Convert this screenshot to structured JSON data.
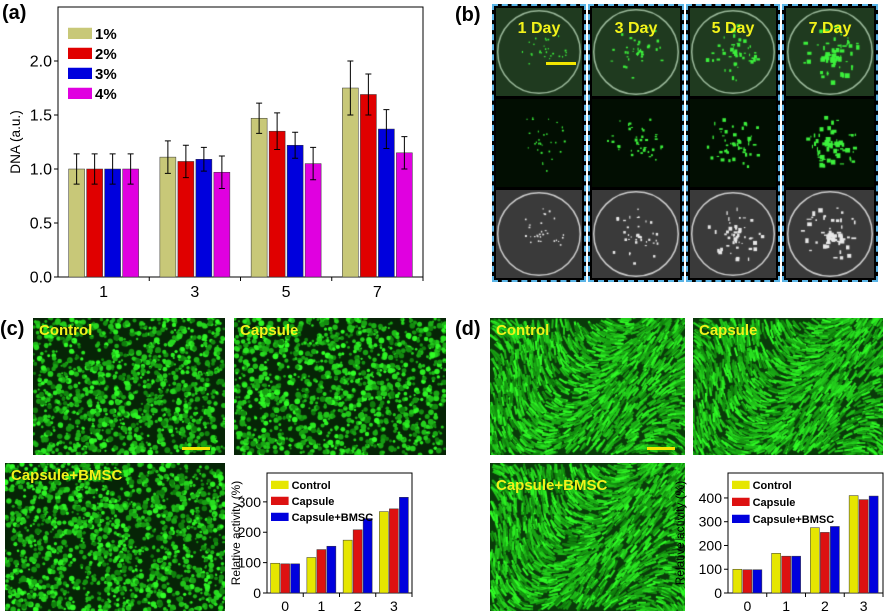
{
  "panels": {
    "a": "(a)",
    "b": "(b)",
    "c": "(c)",
    "d": "(d)"
  },
  "panel_b": {
    "days": [
      "1 Day",
      "3 Day",
      "5 Day",
      "7 Day"
    ],
    "scale_bar_color": "#f2e600",
    "border_color": "#5ab4e6"
  },
  "panel_c": {
    "images": [
      "Control",
      "Capsule",
      "Capsule+BMSC"
    ]
  },
  "panel_d": {
    "images": [
      "Control",
      "Capsule",
      "Capsule+BMSC"
    ]
  },
  "chart_data": [
    {
      "id": "a",
      "type": "bar",
      "xlabel": "",
      "ylabel": "DNA (a.u.)",
      "categories": [
        "1",
        "3",
        "5",
        "7"
      ],
      "ylim": [
        0,
        2.5
      ],
      "yticks": [
        "0.0",
        "0.5",
        "1.0",
        "1.5",
        "2.0"
      ],
      "legend": "top-left",
      "error_bars": true,
      "series": [
        {
          "name": "1%",
          "color": "#c8c878",
          "values": [
            1.0,
            1.11,
            1.47,
            1.75
          ],
          "errors": [
            0.14,
            0.15,
            0.14,
            0.25
          ]
        },
        {
          "name": "2%",
          "color": "#e00000",
          "values": [
            1.0,
            1.07,
            1.35,
            1.69
          ],
          "errors": [
            0.14,
            0.15,
            0.17,
            0.19
          ]
        },
        {
          "name": "3%",
          "color": "#0000dd",
          "values": [
            1.0,
            1.09,
            1.22,
            1.37
          ],
          "errors": [
            0.14,
            0.11,
            0.12,
            0.18
          ]
        },
        {
          "name": "4%",
          "color": "#e000e0",
          "values": [
            1.0,
            0.97,
            1.05,
            1.15
          ],
          "errors": [
            0.14,
            0.15,
            0.15,
            0.15
          ]
        }
      ]
    },
    {
      "id": "c",
      "type": "bar",
      "xlabel": "",
      "ylabel": "Relative activity (%)",
      "categories": [
        "0",
        "1",
        "2",
        "3"
      ],
      "ylim": [
        0,
        395
      ],
      "yticks": [
        "0",
        "100",
        "200",
        "300"
      ],
      "legend": "top-left",
      "series": [
        {
          "name": "Control",
          "color": "#e6e600",
          "values": [
            98,
            117,
            174,
            268
          ]
        },
        {
          "name": "Capsule",
          "color": "#dd1111",
          "values": [
            96,
            143,
            208,
            277
          ]
        },
        {
          "name": "Capsule+BMSC",
          "color": "#0000dd",
          "values": [
            96,
            154,
            245,
            315
          ]
        }
      ]
    },
    {
      "id": "d",
      "type": "bar",
      "xlabel": "",
      "ylabel": "Relative activity (%)",
      "categories": [
        "0",
        "1",
        "2",
        "3"
      ],
      "ylim": [
        0,
        505
      ],
      "yticks": [
        "0",
        "100",
        "200",
        "300",
        "400"
      ],
      "legend": "top-left",
      "series": [
        {
          "name": "Control",
          "color": "#e6e600",
          "values": [
            100,
            167,
            275,
            410
          ]
        },
        {
          "name": "Capsule",
          "color": "#dd1111",
          "values": [
            98,
            155,
            255,
            393
          ]
        },
        {
          "name": "Capsule+BMSC",
          "color": "#0000dd",
          "values": [
            98,
            155,
            280,
            408
          ]
        }
      ]
    }
  ]
}
